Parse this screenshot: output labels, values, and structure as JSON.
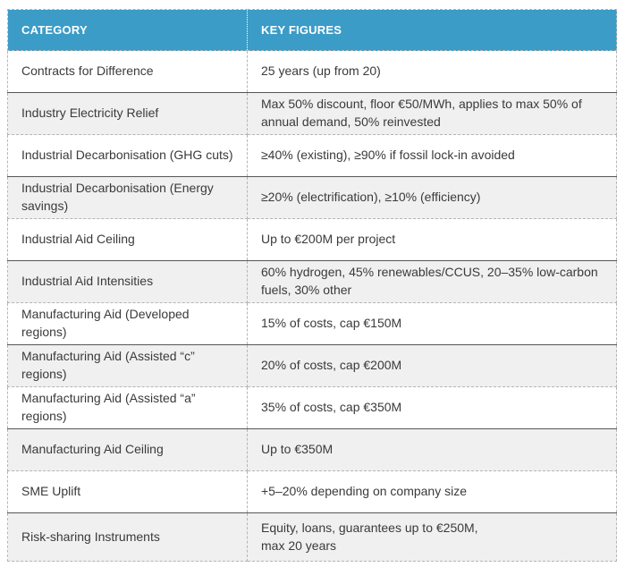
{
  "colors": {
    "header_bg": "#3B9CC7",
    "header_text": "#FFFFFF",
    "row_alt_bg": "#F0F0F0",
    "body_text": "#3A3A3A",
    "border_dashed": "#B5B5B5",
    "border_solid": "#565656"
  },
  "table": {
    "columns": [
      "CATEGORY",
      "KEY FIGURES"
    ],
    "rows": [
      {
        "category": "Contracts for Difference",
        "figures": "25 years (up from 20)"
      },
      {
        "category": "Industry Electricity Relief",
        "figures": "Max 50% discount, floor €50/MWh, applies to max 50% of\nannual demand, 50% reinvested"
      },
      {
        "category": "Industrial Decarbonisation (GHG cuts)",
        "figures": "≥40% (existing), ≥90% if fossil lock-in avoided"
      },
      {
        "category": "Industrial Decarbonisation (Energy\nsavings)",
        "figures": "≥20% (electrification), ≥10% (efficiency)"
      },
      {
        "category": "Industrial Aid Ceiling",
        "figures": "Up to €200M per project"
      },
      {
        "category": "Industrial Aid Intensities",
        "figures": "60% hydrogen, 45% renewables/CCUS, 20–35% low-carbon\nfuels, 30% other"
      },
      {
        "category": "Manufacturing Aid (Developed regions)",
        "figures": "15% of costs, cap €150M"
      },
      {
        "category": "Manufacturing Aid (Assisted “c” regions)",
        "figures": "20% of costs, cap €200M"
      },
      {
        "category": "Manufacturing Aid (Assisted “a” regions)",
        "figures": "35% of costs, cap €350M"
      },
      {
        "category": "Manufacturing Aid Ceiling",
        "figures": "Up to €350M"
      },
      {
        "category": "SME Uplift",
        "figures": "+5–20% depending on company size"
      },
      {
        "category": "Risk-sharing Instruments",
        "figures": "Equity, loans, guarantees up to €250M,\nmax 20 years"
      }
    ]
  }
}
